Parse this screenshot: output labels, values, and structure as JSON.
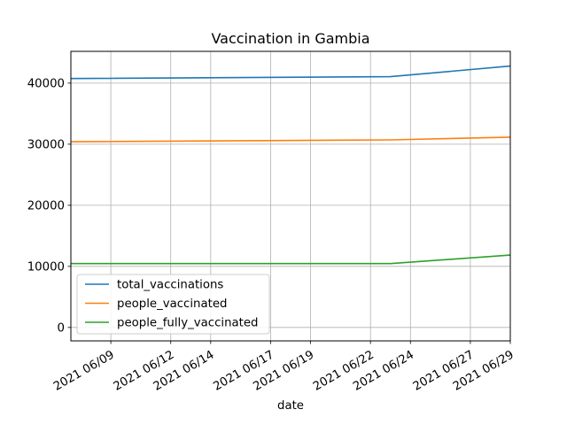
{
  "chart_data": {
    "type": "line",
    "title": "Vaccination in Gambia",
    "xlabel": "date",
    "ylabel": "",
    "x_tick_labels": [
      "2021 06/09",
      "2021 06/12",
      "2021 06/14",
      "2021 06/17",
      "2021 06/19",
      "2021 06/22",
      "2021 06/24",
      "2021 06/27",
      "2021 06/29"
    ],
    "y_tick_labels": [
      "0",
      "10000",
      "20000",
      "30000",
      "40000"
    ],
    "x_ticks": [
      "2021-06-09",
      "2021-06-12",
      "2021-06-14",
      "2021-06-17",
      "2021-06-19",
      "2021-06-22",
      "2021-06-24",
      "2021-06-27",
      "2021-06-29"
    ],
    "y_ticks": [
      0,
      10000,
      20000,
      30000,
      40000
    ],
    "xlim": [
      "2021-06-07",
      "2021-06-29"
    ],
    "ylim": [
      -2200,
      45200
    ],
    "grid": true,
    "legend_position": "lower-left",
    "x": [
      "2021-06-07",
      "2021-06-23",
      "2021-06-29"
    ],
    "series": [
      {
        "name": "total_vaccinations",
        "color": "#1f77b4",
        "values": [
          40750,
          41050,
          42800
        ]
      },
      {
        "name": "people_vaccinated",
        "color": "#ff7f0e",
        "values": [
          30400,
          30700,
          31150
        ]
      },
      {
        "name": "people_fully_vaccinated",
        "color": "#2ca02c",
        "values": [
          10450,
          10450,
          11850
        ]
      }
    ]
  }
}
